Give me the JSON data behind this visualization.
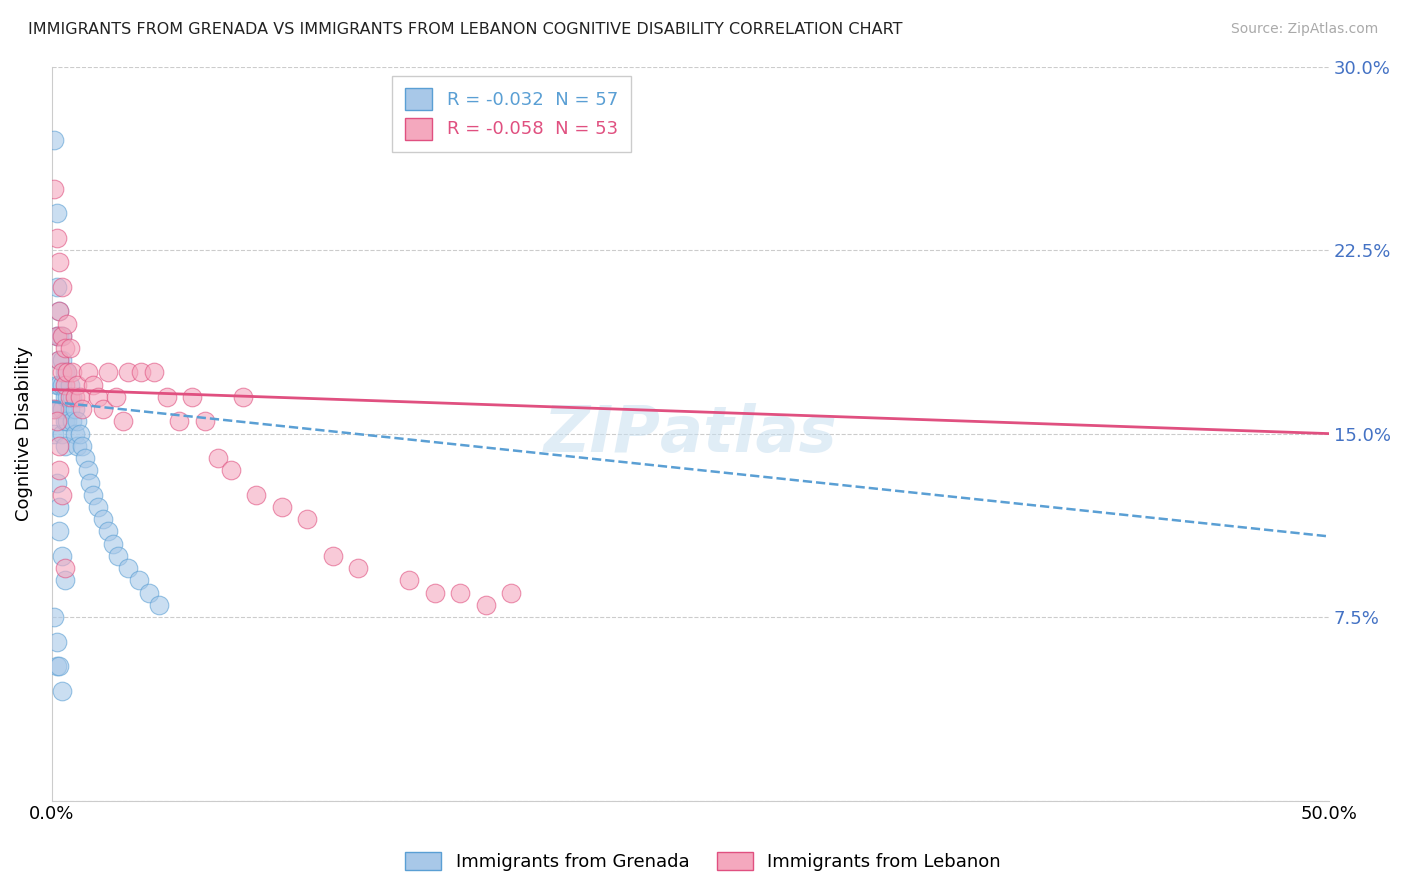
{
  "title": "IMMIGRANTS FROM GRENADA VS IMMIGRANTS FROM LEBANON COGNITIVE DISABILITY CORRELATION CHART",
  "source": "Source: ZipAtlas.com",
  "ylabel": "Cognitive Disability",
  "legend_label1": "Immigrants from Grenada",
  "legend_label2": "Immigrants from Lebanon",
  "R1": -0.032,
  "N1": 57,
  "R2": -0.058,
  "N2": 53,
  "xlim": [
    0.0,
    0.5
  ],
  "ylim": [
    0.0,
    0.3
  ],
  "yticks": [
    0.0,
    0.075,
    0.15,
    0.225,
    0.3
  ],
  "ytick_labels": [
    "",
    "7.5%",
    "15.0%",
    "22.5%",
    "30.0%"
  ],
  "xtick_positions": [
    0.0,
    0.5
  ],
  "xtick_labels": [
    "0.0%",
    "50.0%"
  ],
  "color_grenada": "#a8c8e8",
  "color_lebanon": "#f4a8be",
  "line_color_grenada": "#5a9fd4",
  "line_color_lebanon": "#e05080",
  "tick_color": "#4472c4",
  "background_color": "#ffffff",
  "grenada_x": [
    0.001,
    0.001,
    0.001,
    0.002,
    0.002,
    0.002,
    0.002,
    0.003,
    0.003,
    0.003,
    0.003,
    0.003,
    0.004,
    0.004,
    0.004,
    0.004,
    0.004,
    0.005,
    0.005,
    0.005,
    0.005,
    0.006,
    0.006,
    0.006,
    0.007,
    0.007,
    0.008,
    0.008,
    0.009,
    0.009,
    0.01,
    0.01,
    0.011,
    0.012,
    0.013,
    0.014,
    0.015,
    0.016,
    0.018,
    0.02,
    0.022,
    0.024,
    0.026,
    0.03,
    0.034,
    0.038,
    0.042,
    0.002,
    0.003,
    0.003,
    0.004,
    0.005,
    0.001,
    0.002,
    0.002,
    0.003,
    0.004
  ],
  "grenada_y": [
    0.27,
    0.16,
    0.15,
    0.24,
    0.21,
    0.19,
    0.17,
    0.2,
    0.19,
    0.18,
    0.17,
    0.16,
    0.19,
    0.18,
    0.17,
    0.16,
    0.15,
    0.175,
    0.165,
    0.155,
    0.145,
    0.175,
    0.165,
    0.155,
    0.17,
    0.16,
    0.165,
    0.155,
    0.16,
    0.15,
    0.155,
    0.145,
    0.15,
    0.145,
    0.14,
    0.135,
    0.13,
    0.125,
    0.12,
    0.115,
    0.11,
    0.105,
    0.1,
    0.095,
    0.09,
    0.085,
    0.08,
    0.13,
    0.12,
    0.11,
    0.1,
    0.09,
    0.075,
    0.065,
    0.055,
    0.055,
    0.045
  ],
  "lebanon_x": [
    0.001,
    0.001,
    0.002,
    0.002,
    0.003,
    0.003,
    0.003,
    0.004,
    0.004,
    0.004,
    0.005,
    0.005,
    0.006,
    0.006,
    0.007,
    0.007,
    0.008,
    0.009,
    0.01,
    0.011,
    0.012,
    0.014,
    0.016,
    0.018,
    0.02,
    0.022,
    0.025,
    0.028,
    0.03,
    0.035,
    0.04,
    0.045,
    0.05,
    0.055,
    0.06,
    0.065,
    0.07,
    0.075,
    0.08,
    0.09,
    0.1,
    0.11,
    0.12,
    0.14,
    0.15,
    0.16,
    0.17,
    0.18,
    0.002,
    0.003,
    0.003,
    0.004,
    0.005
  ],
  "lebanon_y": [
    0.25,
    0.16,
    0.23,
    0.19,
    0.22,
    0.2,
    0.18,
    0.21,
    0.19,
    0.175,
    0.185,
    0.17,
    0.195,
    0.175,
    0.185,
    0.165,
    0.175,
    0.165,
    0.17,
    0.165,
    0.16,
    0.175,
    0.17,
    0.165,
    0.16,
    0.175,
    0.165,
    0.155,
    0.175,
    0.175,
    0.175,
    0.165,
    0.155,
    0.165,
    0.155,
    0.14,
    0.135,
    0.165,
    0.125,
    0.12,
    0.115,
    0.1,
    0.095,
    0.09,
    0.085,
    0.085,
    0.08,
    0.085,
    0.155,
    0.145,
    0.135,
    0.125,
    0.095
  ],
  "grenada_trend_x0": 0.0,
  "grenada_trend_y0": 0.163,
  "grenada_trend_x1": 0.5,
  "grenada_trend_y1": 0.108,
  "lebanon_trend_x0": 0.0,
  "lebanon_trend_y0": 0.168,
  "lebanon_trend_x1": 0.5,
  "lebanon_trend_y1": 0.15
}
